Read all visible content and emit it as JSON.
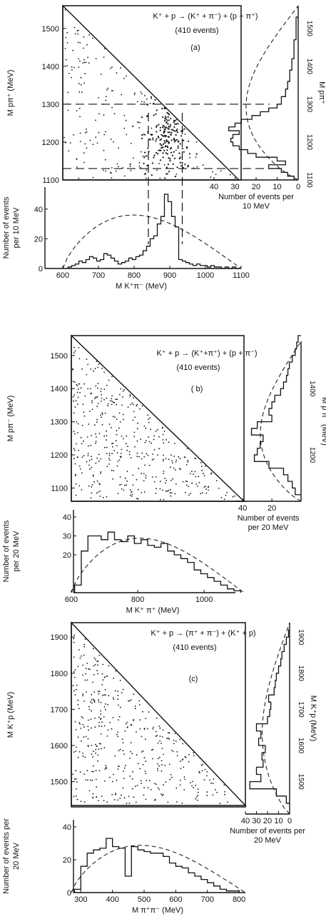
{
  "panels": [
    {
      "id": "a",
      "reaction": "K⁺ + p → (K⁺ + π⁻) + (p + π⁺)",
      "events": "(410 events)",
      "tag": "(a)",
      "dalitz_ylabel": "M pπ⁺ (MeV)",
      "dalitz_yticks": [
        "1100",
        "1200",
        "1300",
        "1400",
        "1500"
      ],
      "right_ylabel": "M pπ⁺",
      "right_yticks": [
        "1100",
        "1200",
        "1300",
        "1400",
        "1500"
      ],
      "right_xticks": [
        "40",
        "30",
        "20",
        "10",
        "0"
      ],
      "right_xlabel": [
        "Number of events per",
        "10 MeV"
      ],
      "bottom_ylabel": [
        "Number of events",
        "per 10 MeV"
      ],
      "bottom_yticks": [
        "0",
        "20",
        "40"
      ],
      "bottom_xticks": [
        "600",
        "700",
        "800",
        "900",
        "1000",
        "1100"
      ],
      "bottom_xlabel": "M K⁺π⁻  (MeV)"
    },
    {
      "id": "b",
      "reaction": "K⁺ + p → (K⁺+π⁺) + (p + π⁻)",
      "events": "(410 events)",
      "tag": "( b)",
      "dalitz_ylabel": "M pπ⁻  (MeV)",
      "dalitz_yticks": [
        "1100",
        "1200",
        "1300",
        "1400",
        "1500"
      ],
      "right_ylabel": "M p π⁻ (MeV)",
      "right_yticks": [
        "1200",
        "1400"
      ],
      "right_xticks": [
        "40",
        "20"
      ],
      "right_xlabel": [
        "Number of events",
        "per 20  MeV"
      ],
      "bottom_ylabel": [
        "Number of events",
        "per 20 MeV"
      ],
      "bottom_yticks": [
        "20",
        "30",
        "40"
      ],
      "bottom_xticks": [
        "600",
        "800",
        "1000"
      ],
      "bottom_xlabel": "M K⁺ π⁺   (MeV)"
    },
    {
      "id": "c",
      "reaction": "K⁺ + p → (π⁺ + π⁻) + (K⁺ + p)",
      "events": "(410 events)",
      "tag": "(c)",
      "dalitz_ylabel": "M K⁺p (MeV)",
      "dalitz_yticks": [
        "1500",
        "1600",
        "1700",
        "1800",
        "1900"
      ],
      "right_ylabel": "M K⁺p (MeV)",
      "right_yticks": [
        "1500",
        "1600",
        "1700",
        "1800",
        "1900"
      ],
      "right_xticks": [
        "40",
        "30",
        "20",
        "10",
        "0"
      ],
      "right_xlabel": [
        "Number of events per",
        "20 MeV"
      ],
      "bottom_ylabel": [
        "Number of events per",
        "20 MeV"
      ],
      "bottom_yticks": [
        "0",
        "20",
        "40"
      ],
      "bottom_xticks": [
        "300",
        "400",
        "500",
        "600",
        "700",
        "800"
      ],
      "bottom_xlabel": "M π⁺π⁻ (MeV)"
    }
  ],
  "chart_data": [
    {
      "panel": "a",
      "type": "scatter",
      "title": "K⁺ + p → (K⁺ + π⁻) + (p + π⁺) (410 events)",
      "xlim": [
        600,
        1100
      ],
      "ylim": [
        1100,
        1560
      ],
      "band_lines_y": [
        1130,
        1300
      ],
      "band_lines_x": [
        840,
        935
      ],
      "cluster": {
        "x": 890,
        "y": 1225,
        "sx": 35,
        "sy": 55,
        "n": 230
      },
      "background_points": 180
    },
    {
      "panel": "a",
      "type": "bar",
      "name": "M pπ⁺ projection",
      "categories": [
        1105,
        1115,
        1125,
        1135,
        1145,
        1155,
        1165,
        1175,
        1185,
        1195,
        1205,
        1215,
        1225,
        1235,
        1245,
        1255,
        1265,
        1275,
        1285,
        1295,
        1305,
        1315,
        1325,
        1335,
        1345,
        1355,
        1365,
        1375,
        1385,
        1395,
        1405,
        1415,
        1425,
        1435,
        1445,
        1455,
        1465,
        1475,
        1485,
        1495,
        1505,
        1515,
        1525
      ],
      "values": [
        2,
        5,
        8,
        14,
        6,
        10,
        20,
        24,
        28,
        31,
        32,
        31,
        28,
        33,
        30,
        27,
        22,
        18,
        14,
        10,
        8,
        8,
        6,
        6,
        5,
        5,
        4,
        4,
        4,
        3,
        3,
        3,
        2,
        2,
        2,
        2,
        2,
        1,
        1,
        1,
        1,
        1,
        1
      ],
      "xlim": [
        40,
        0
      ]
    },
    {
      "panel": "a",
      "type": "bar",
      "name": "M K⁺π⁻ projection",
      "categories": [
        620,
        630,
        640,
        650,
        660,
        670,
        680,
        690,
        700,
        710,
        720,
        730,
        740,
        750,
        760,
        770,
        780,
        790,
        800,
        810,
        820,
        830,
        840,
        850,
        860,
        870,
        880,
        890,
        900,
        910,
        920,
        930,
        940,
        950,
        960,
        970,
        980,
        990,
        1000,
        1010,
        1020,
        1030,
        1040,
        1050,
        1060,
        1070,
        1080,
        1090
      ],
      "values": [
        1,
        2,
        3,
        5,
        4,
        6,
        8,
        7,
        5,
        6,
        10,
        9,
        7,
        5,
        3,
        4,
        5,
        7,
        6,
        8,
        9,
        12,
        15,
        20,
        22,
        30,
        35,
        50,
        45,
        35,
        28,
        6,
        5,
        4,
        3,
        2,
        3,
        2,
        2,
        1,
        2,
        1,
        1,
        0,
        1,
        0,
        1,
        0
      ],
      "ylim": [
        0,
        50
      ]
    },
    {
      "panel": "b",
      "type": "scatter",
      "title": "K⁺ + p → (K⁺+π⁺) + (p + π⁻) (410 events)",
      "xlim": [
        600,
        1120
      ],
      "ylim": [
        1060,
        1560
      ],
      "background_points": 410
    },
    {
      "panel": "b",
      "type": "bar",
      "name": "M pπ⁻ projection",
      "categories": [
        1090,
        1110,
        1130,
        1150,
        1170,
        1190,
        1210,
        1230,
        1250,
        1270,
        1290,
        1310,
        1330,
        1350,
        1370,
        1390,
        1410,
        1430,
        1450,
        1470,
        1490,
        1510,
        1530,
        1550
      ],
      "values": [
        4,
        6,
        9,
        12,
        22,
        32,
        30,
        28,
        26,
        34,
        30,
        20,
        22,
        20,
        18,
        14,
        12,
        10,
        9,
        8,
        6,
        4,
        3,
        2
      ],
      "xlim": [
        45,
        0
      ]
    },
    {
      "panel": "b",
      "type": "bar",
      "name": "M K⁺π⁺ projection",
      "categories": [
        620,
        640,
        660,
        680,
        700,
        720,
        740,
        760,
        780,
        800,
        820,
        840,
        860,
        880,
        900,
        920,
        940,
        960,
        980,
        1000,
        1020,
        1040,
        1060,
        1080,
        1100
      ],
      "values": [
        4,
        22,
        30,
        30,
        28,
        32,
        28,
        27,
        30,
        26,
        28,
        25,
        24,
        26,
        22,
        20,
        18,
        16,
        12,
        10,
        8,
        6,
        4,
        2,
        1
      ],
      "ylim": [
        0,
        40
      ]
    },
    {
      "panel": "c",
      "type": "scatter",
      "title": "K⁺ + p → (π⁺ + π⁻) + (K⁺ + p) (410 events)",
      "xlim": [
        270,
        820
      ],
      "ylim": [
        1430,
        1940
      ],
      "background_points": 410
    },
    {
      "panel": "c",
      "type": "bar",
      "name": "M K⁺p projection",
      "categories": [
        1450,
        1470,
        1490,
        1510,
        1530,
        1550,
        1570,
        1590,
        1610,
        1630,
        1650,
        1670,
        1690,
        1710,
        1730,
        1750,
        1770,
        1790,
        1810,
        1830,
        1850,
        1870,
        1890,
        1910
      ],
      "values": [
        3,
        12,
        36,
        26,
        30,
        24,
        25,
        22,
        28,
        26,
        30,
        20,
        18,
        17,
        19,
        14,
        13,
        12,
        10,
        8,
        7,
        5,
        3,
        1
      ],
      "xlim": [
        40,
        0
      ]
    },
    {
      "panel": "c",
      "type": "bar",
      "name": "M π⁺π⁻ projection",
      "categories": [
        290,
        310,
        330,
        350,
        370,
        390,
        410,
        430,
        450,
        470,
        490,
        510,
        530,
        550,
        570,
        590,
        610,
        630,
        650,
        670,
        690,
        710,
        730,
        750,
        770,
        790
      ],
      "values": [
        2,
        16,
        24,
        26,
        27,
        33,
        28,
        27,
        10,
        28,
        26,
        25,
        24,
        24,
        22,
        18,
        16,
        15,
        12,
        10,
        8,
        6,
        4,
        2,
        1,
        1
      ],
      "ylim": [
        0,
        40
      ]
    }
  ]
}
